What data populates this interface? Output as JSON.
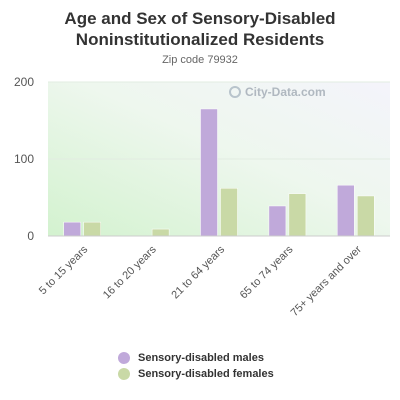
{
  "chart_data": {
    "type": "bar",
    "title": "Age and Sex of Sensory-Disabled Noninstitutionalized Residents",
    "subtitle": "Zip code 79932",
    "categories": [
      "5 to 15 years",
      "16 to 20 years",
      "21 to 64 years",
      "65 to 74 years",
      "75+ years and over"
    ],
    "series": [
      {
        "name": "Sensory-disabled males",
        "color": "#c0a9da",
        "values": [
          18,
          0,
          165,
          39,
          66
        ]
      },
      {
        "name": "Sensory-disabled females",
        "color": "#c9d9a6",
        "values": [
          18,
          9,
          62,
          55,
          52
        ]
      }
    ],
    "yticks": [
      0,
      100,
      200
    ],
    "ylim": [
      0,
      200
    ],
    "legend_position": "bottom",
    "grid": true,
    "watermark": "City-Data.com"
  }
}
